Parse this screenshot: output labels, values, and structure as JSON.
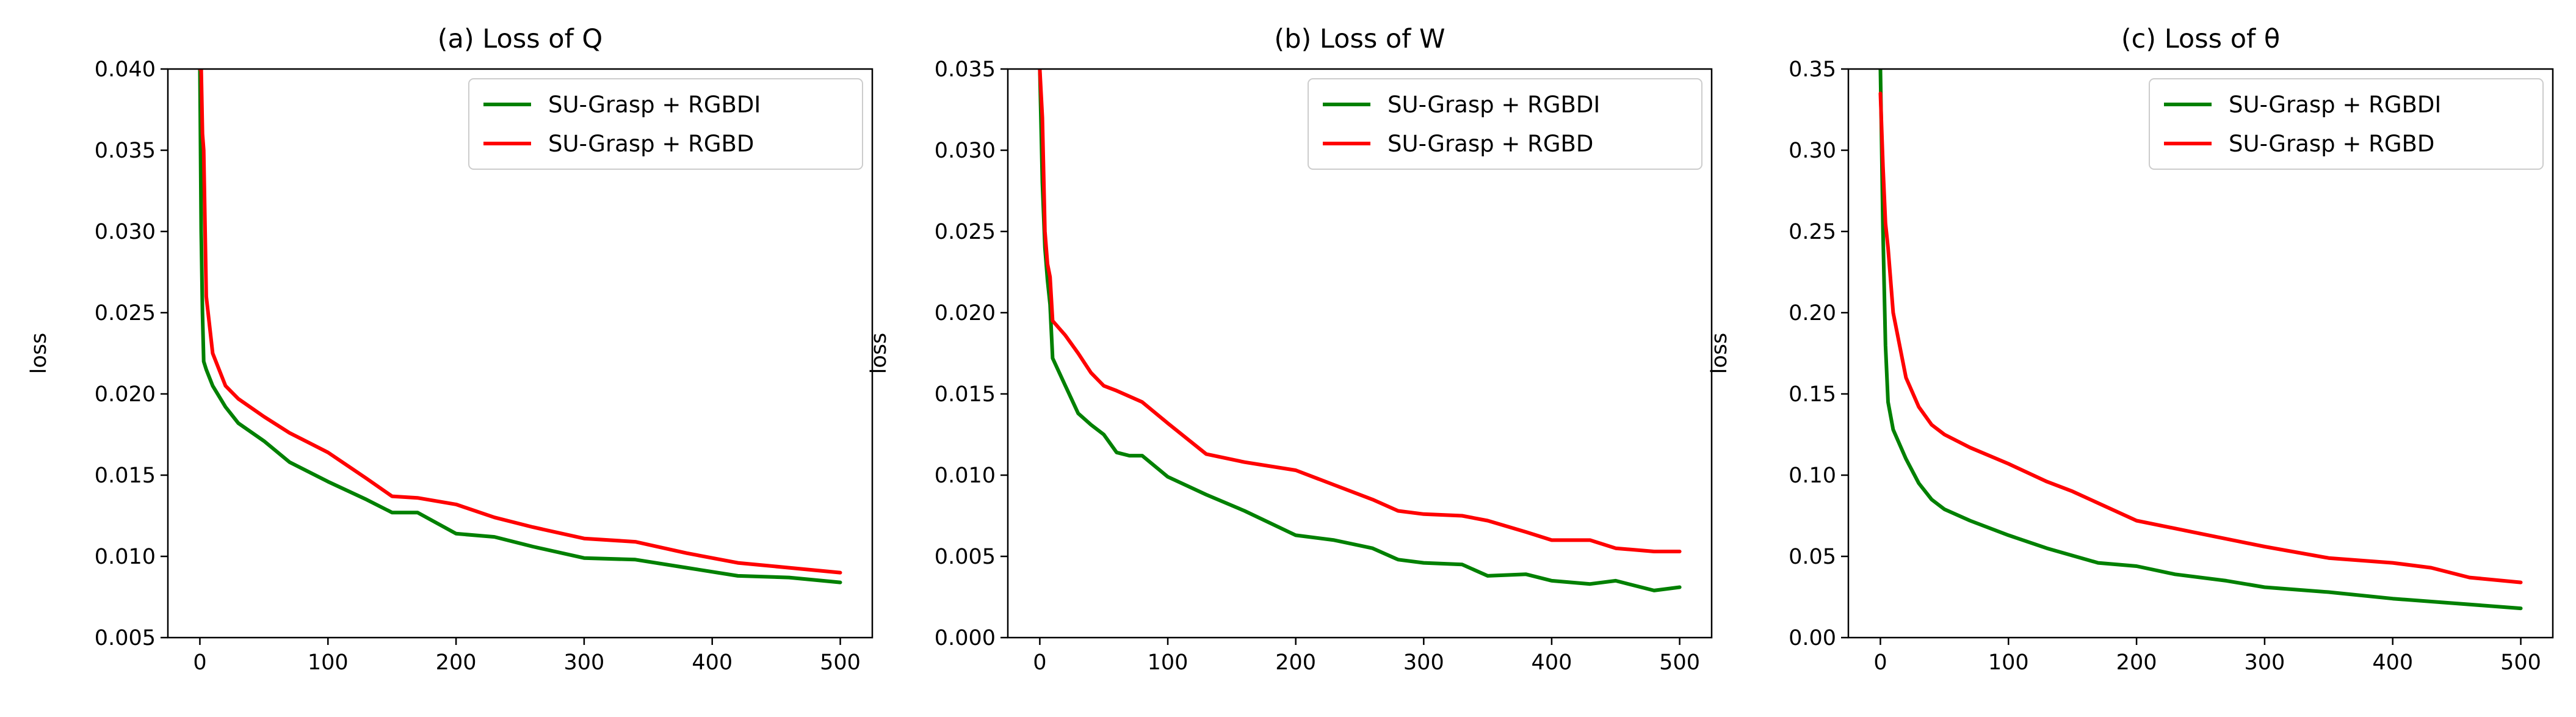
{
  "chart_data": [
    {
      "type": "line",
      "title": "(a) Loss of Q",
      "xlabel": "",
      "ylabel": "loss",
      "xlim": [
        -25,
        525
      ],
      "ylim": [
        0.005,
        0.04
      ],
      "xticks": [
        0,
        100,
        200,
        300,
        400,
        500
      ],
      "xtick_labels": [
        "0",
        "100",
        "200",
        "300",
        "400",
        "500"
      ],
      "yticks": [
        0.005,
        0.01,
        0.015,
        0.02,
        0.025,
        0.03,
        0.035,
        0.04
      ],
      "ytick_labels": [
        "0.005",
        "0.010",
        "0.015",
        "0.020",
        "0.025",
        "0.030",
        "0.035",
        "0.040"
      ],
      "legend_position": "top-right",
      "series": [
        {
          "name": "SU-Grasp + RGBDI",
          "color": "#008000",
          "x": [
            0,
            1,
            2,
            3,
            5,
            10,
            20,
            30,
            50,
            70,
            100,
            130,
            150,
            170,
            200,
            230,
            260,
            300,
            340,
            380,
            420,
            460,
            500
          ],
          "y": [
            0.04,
            0.03,
            0.025,
            0.022,
            0.0215,
            0.0205,
            0.0192,
            0.0182,
            0.0171,
            0.0158,
            0.0146,
            0.0135,
            0.0127,
            0.0127,
            0.0114,
            0.0112,
            0.0106,
            0.0099,
            0.0098,
            0.0093,
            0.0088,
            0.0087,
            0.0084
          ]
        },
        {
          "name": "SU-Grasp + RGBD",
          "color": "#ff0000",
          "x": [
            0,
            1,
            2,
            3,
            5,
            10,
            20,
            30,
            50,
            70,
            100,
            130,
            150,
            170,
            200,
            230,
            260,
            300,
            340,
            380,
            420,
            460,
            500
          ],
          "y": [
            0.04,
            0.04,
            0.036,
            0.035,
            0.026,
            0.0225,
            0.0205,
            0.0197,
            0.0186,
            0.0176,
            0.0164,
            0.0148,
            0.0137,
            0.0136,
            0.0132,
            0.0124,
            0.0118,
            0.0111,
            0.0109,
            0.0102,
            0.0096,
            0.0093,
            0.009
          ]
        }
      ]
    },
    {
      "type": "line",
      "title": "(b) Loss of W",
      "xlabel": "",
      "ylabel": "loss",
      "xlim": [
        -25,
        525
      ],
      "ylim": [
        0.0,
        0.035
      ],
      "xticks": [
        0,
        100,
        200,
        300,
        400,
        500
      ],
      "xtick_labels": [
        "0",
        "100",
        "200",
        "300",
        "400",
        "500"
      ],
      "yticks": [
        0.0,
        0.005,
        0.01,
        0.015,
        0.02,
        0.025,
        0.03,
        0.035
      ],
      "ytick_labels": [
        "0.000",
        "0.005",
        "0.010",
        "0.015",
        "0.020",
        "0.025",
        "0.030",
        "0.035"
      ],
      "legend_position": "top-right",
      "series": [
        {
          "name": "SU-Grasp + RGBDI",
          "color": "#008000",
          "x": [
            0,
            2,
            4,
            6,
            8,
            10,
            20,
            30,
            40,
            50,
            60,
            70,
            80,
            100,
            130,
            160,
            200,
            230,
            260,
            280,
            300,
            330,
            350,
            380,
            400,
            430,
            450,
            480,
            500
          ],
          "y": [
            0.035,
            0.028,
            0.024,
            0.022,
            0.0205,
            0.0172,
            0.0155,
            0.0138,
            0.0131,
            0.0125,
            0.0114,
            0.0112,
            0.0112,
            0.0099,
            0.0088,
            0.0078,
            0.0063,
            0.006,
            0.0055,
            0.0048,
            0.0046,
            0.0045,
            0.0038,
            0.0039,
            0.0035,
            0.0033,
            0.0035,
            0.0029,
            0.0031
          ]
        },
        {
          "name": "SU-Grasp + RGBD",
          "color": "#ff0000",
          "x": [
            0,
            2,
            4,
            6,
            8,
            10,
            20,
            30,
            40,
            50,
            60,
            80,
            100,
            130,
            160,
            200,
            230,
            260,
            280,
            300,
            330,
            350,
            380,
            400,
            430,
            450,
            480,
            500
          ],
          "y": [
            0.035,
            0.032,
            0.025,
            0.023,
            0.0222,
            0.0195,
            0.0186,
            0.0175,
            0.0163,
            0.0155,
            0.0152,
            0.0145,
            0.0132,
            0.0113,
            0.0108,
            0.0103,
            0.0094,
            0.0085,
            0.0078,
            0.0076,
            0.0075,
            0.0072,
            0.0065,
            0.006,
            0.006,
            0.0055,
            0.0053,
            0.0053
          ]
        }
      ]
    },
    {
      "type": "line",
      "title": "(c) Loss of θ",
      "xlabel": "",
      "ylabel": "loss",
      "xlim": [
        -25,
        525
      ],
      "ylim": [
        0.0,
        0.35
      ],
      "xticks": [
        0,
        100,
        200,
        300,
        400,
        500
      ],
      "xtick_labels": [
        "0",
        "100",
        "200",
        "300",
        "400",
        "500"
      ],
      "yticks": [
        0.0,
        0.05,
        0.1,
        0.15,
        0.2,
        0.25,
        0.3,
        0.35
      ],
      "ytick_labels": [
        "0.00",
        "0.05",
        "0.10",
        "0.15",
        "0.20",
        "0.25",
        "0.30",
        "0.35"
      ],
      "legend_position": "top-right",
      "series": [
        {
          "name": "SU-Grasp + RGBDI",
          "color": "#008000",
          "x": [
            0,
            2,
            4,
            6,
            10,
            20,
            30,
            40,
            50,
            70,
            100,
            130,
            170,
            200,
            230,
            270,
            300,
            350,
            400,
            450,
            500
          ],
          "y": [
            0.35,
            0.25,
            0.18,
            0.145,
            0.128,
            0.11,
            0.095,
            0.085,
            0.079,
            0.072,
            0.063,
            0.055,
            0.046,
            0.044,
            0.039,
            0.035,
            0.031,
            0.028,
            0.024,
            0.021,
            0.018
          ]
        },
        {
          "name": "SU-Grasp + RGBD",
          "color": "#ff0000",
          "x": [
            0,
            2,
            4,
            6,
            10,
            20,
            30,
            40,
            50,
            70,
            100,
            130,
            150,
            200,
            250,
            300,
            350,
            400,
            430,
            460,
            500
          ],
          "y": [
            0.335,
            0.29,
            0.255,
            0.24,
            0.2,
            0.16,
            0.142,
            0.131,
            0.125,
            0.117,
            0.107,
            0.096,
            0.09,
            0.072,
            0.064,
            0.056,
            0.049,
            0.046,
            0.043,
            0.037,
            0.034
          ]
        }
      ]
    }
  ]
}
